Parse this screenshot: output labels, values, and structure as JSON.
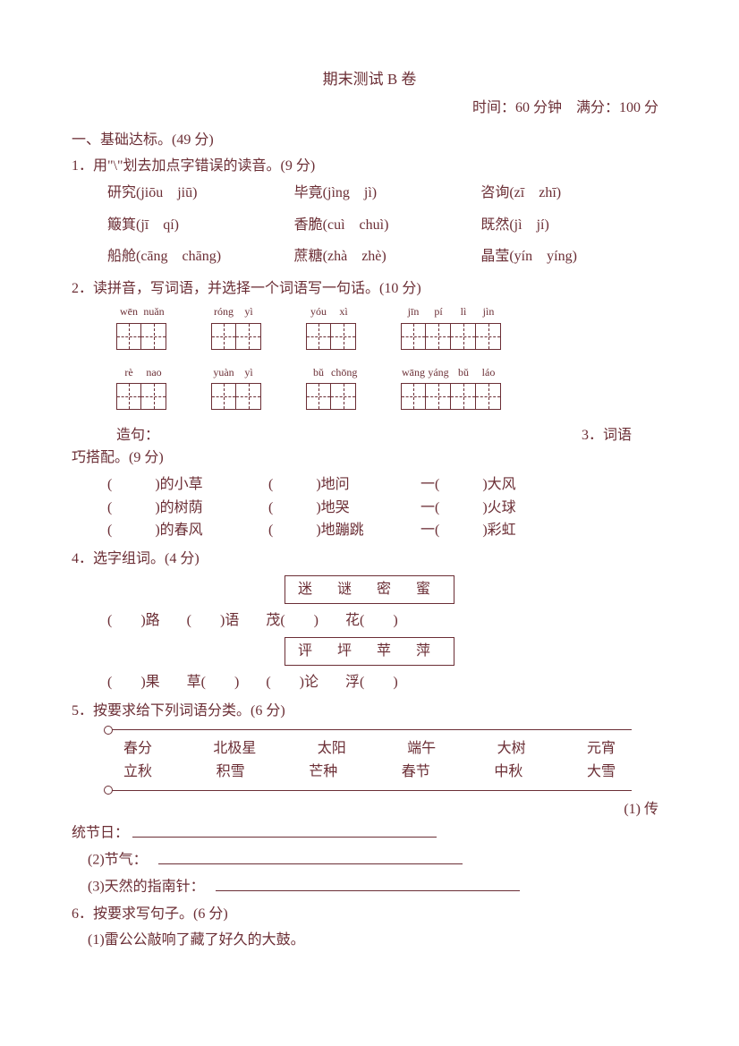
{
  "title": "期末测试 B 卷",
  "meta": {
    "time_label": "时间：",
    "time_value": "60 分钟",
    "score_label": "满分：",
    "score_value": "100 分"
  },
  "sec1": {
    "header": "一、基础达标。(49 分)",
    "q1": {
      "prompt": "1．用\"\\\"划去加点字错误的读音。(9 分)",
      "rows": [
        [
          "研究(jiōu　jiū)",
          "毕竟(jìng　jì)",
          "咨询(zī　zhī)"
        ],
        [
          "簸箕(jī　qí)",
          "香脆(cuì　chuì)",
          "既然(jì　jí)"
        ],
        [
          "船舱(cāng　chāng)",
          "蔗糖(zhà　zhè)",
          "晶莹(yín　yíng)"
        ]
      ]
    },
    "q2": {
      "prompt": "2．读拼音，写词语，并选择一个词语写一句话。(10 分)",
      "row1": [
        {
          "py": [
            "wēn",
            "nuǎn"
          ],
          "n": 2
        },
        {
          "py": [
            "róng",
            "yì"
          ],
          "n": 2
        },
        {
          "py": [
            "yóu",
            "xì"
          ],
          "n": 2
        },
        {
          "py": [
            "jīn",
            "pí",
            "lì",
            "jìn"
          ],
          "n": 4
        }
      ],
      "row2": [
        {
          "py": [
            "rè",
            "nao"
          ],
          "n": 2
        },
        {
          "py": [
            "yuàn",
            "yì"
          ],
          "n": 2
        },
        {
          "py": [
            "bǔ",
            "chōng"
          ],
          "n": 2
        },
        {
          "py": [
            "wāng",
            "yáng",
            "bǔ",
            "láo"
          ],
          "n": 4
        }
      ],
      "zaoju": "造句：",
      "q3label": "3．词语"
    },
    "q3": {
      "prompt": "巧搭配。(9 分)",
      "rows": [
        [
          "(　　　)的小草",
          "(　　　)地问",
          "一(　　　)大风"
        ],
        [
          "(　　　)的树荫",
          "(　　　)地哭",
          "一(　　　)火球"
        ],
        [
          "(　　　)的春风",
          "(　　　)地蹦跳",
          "一(　　　)彩虹"
        ]
      ]
    },
    "q4": {
      "prompt": "4．选字组词。(4 分)",
      "box1": "迷 谜 密 蜜",
      "fill1": [
        "(　　)路",
        "(　　)语",
        "茂(　　)",
        "花(　　)"
      ],
      "box2": "评 坪 苹 萍",
      "fill2": [
        "(　　)果",
        "草(　　)",
        "(　　)论",
        "浮(　　)"
      ]
    },
    "q5": {
      "prompt": "5．按要求给下列词语分类。(6 分)",
      "words_r1": [
        "春分",
        "北极星",
        "太阳",
        "端午",
        "大树",
        "元宵"
      ],
      "words_r2": [
        "立秋",
        "积雪",
        "芒种",
        "春节",
        "中秋",
        "大雪"
      ],
      "tail": "(1) 传",
      "l1": "统节日：",
      "l2": "(2)节气：",
      "l3": "(3)天然的指南针："
    },
    "q6": {
      "prompt": "6．按要求写句子。(6 分)",
      "s1": "(1)雷公公敲响了藏了好久的大鼓。"
    }
  },
  "colors": {
    "text": "#6b2e35",
    "bg": "#ffffff"
  }
}
